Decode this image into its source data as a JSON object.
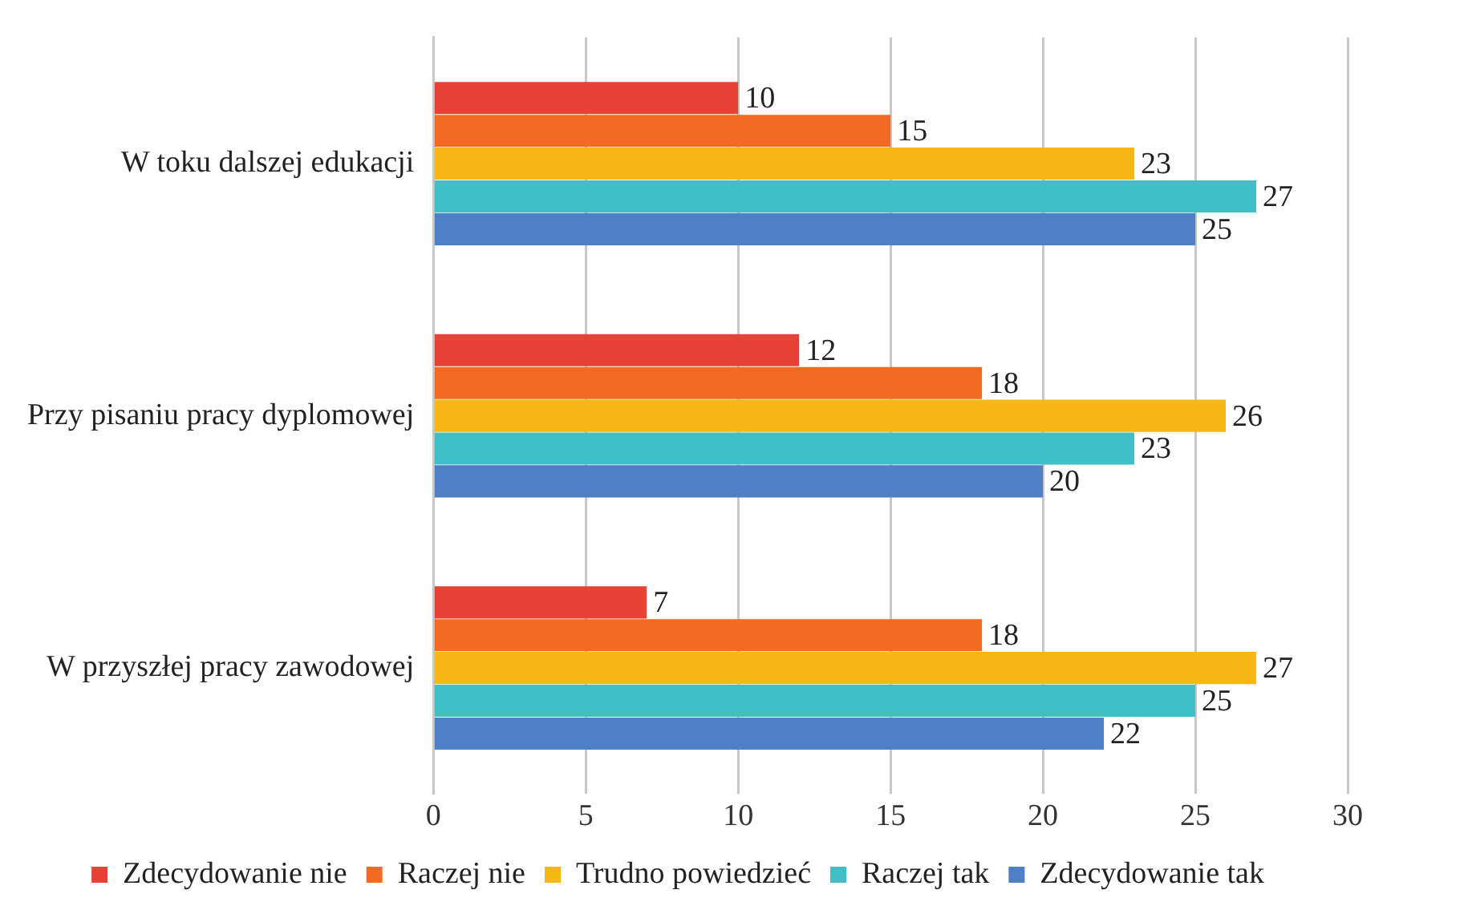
{
  "chart_data": {
    "type": "bar",
    "orientation": "horizontal",
    "categories": [
      "W toku dalszej edukacji",
      "Przy pisaniu pracy dyplomowej",
      "W przyszłej pracy zawodowej"
    ],
    "series": [
      {
        "name": "Zdecydowanie nie",
        "color": "#e84236",
        "values": [
          10,
          12,
          7
        ]
      },
      {
        "name": "Raczej nie",
        "color": "#f26b22",
        "values": [
          15,
          18,
          18
        ]
      },
      {
        "name": "Trudno powiedzieć",
        "color": "#f7b714",
        "values": [
          23,
          26,
          27
        ]
      },
      {
        "name": "Raczej tak",
        "color": "#41bfc6",
        "values": [
          27,
          23,
          25
        ]
      },
      {
        "name": "Zdecydowanie tak",
        "color": "#4f7fc4",
        "values": [
          25,
          20,
          22
        ]
      }
    ],
    "xlim": [
      0,
      30
    ],
    "xticks": [
      0,
      5,
      10,
      15,
      20,
      25,
      30
    ],
    "grid": "x",
    "legend": "bottom",
    "data_labels": true
  }
}
